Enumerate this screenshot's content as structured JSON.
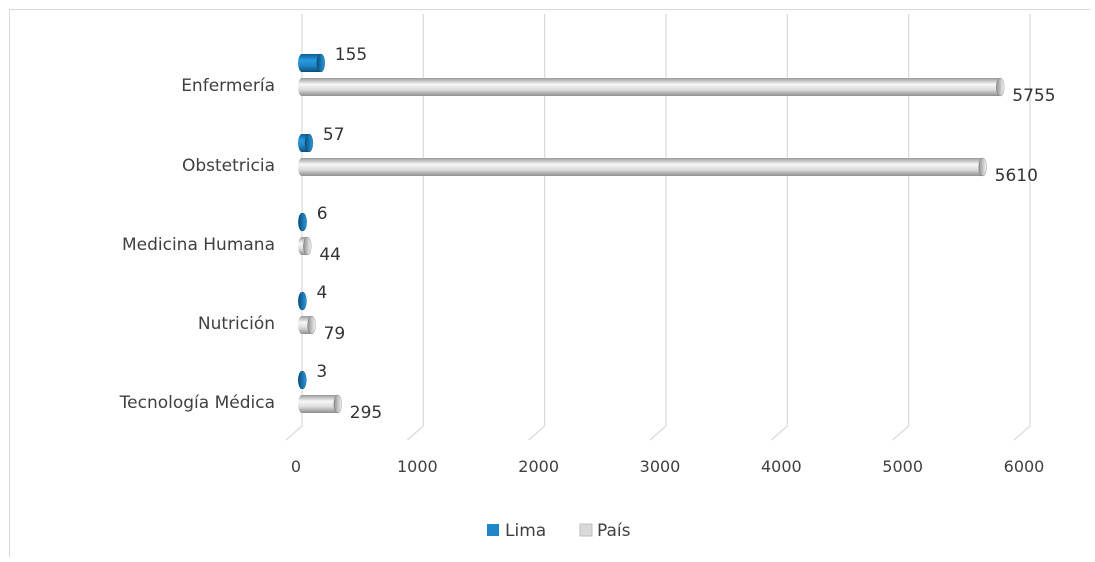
{
  "chart_data": {
    "type": "bar",
    "orientation": "horizontal",
    "style": "3d-cylinder",
    "categories": [
      "Enfermería",
      "Obstetricia",
      "Medicina Humana",
      "Nutrición",
      "Tecnología Médica"
    ],
    "series": [
      {
        "name": "Lima",
        "values": [
          155,
          57,
          6,
          4,
          3
        ],
        "color": "#1f86c8"
      },
      {
        "name": "País",
        "values": [
          5755,
          5610,
          44,
          79,
          295
        ],
        "color": "#d9d9d9"
      }
    ],
    "xlim": [
      0,
      6000
    ],
    "xticks": [
      0,
      1000,
      2000,
      3000,
      4000,
      5000,
      6000
    ],
    "xtick_labels": [
      "0",
      "1000",
      "2000",
      "3000",
      "4000",
      "5000",
      "6000"
    ],
    "grid": "vertical",
    "legend_position": "bottom",
    "title": "",
    "xlabel": "",
    "ylabel": ""
  },
  "legend": {
    "items": [
      {
        "label": "Lima",
        "color": "#1f86c8"
      },
      {
        "label": "País",
        "color": "#d9d9d9"
      }
    ]
  }
}
